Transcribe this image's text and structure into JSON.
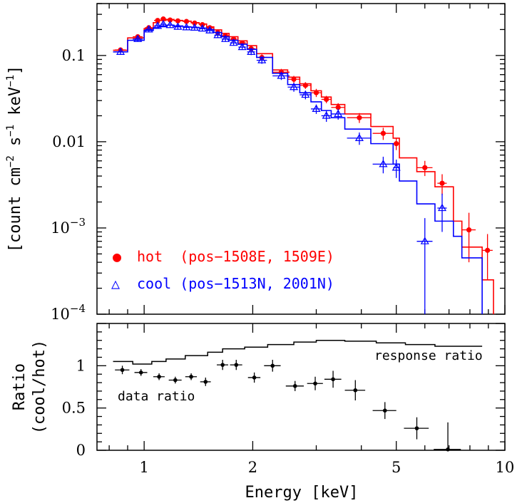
{
  "chart_data": [
    {
      "type": "scatter",
      "panel": "top",
      "xlabel": "Energy [keV]",
      "ylabel": [
        "[count cm",
        "−2",
        " s",
        "−1",
        " keV",
        "−1",
        "]"
      ],
      "xscale": "log",
      "yscale": "log",
      "xlim": [
        0.74,
        10
      ],
      "ylim": [
        0.0001,
        0.4
      ],
      "xtick_labels": [
        {
          "value": 1,
          "label": "1"
        },
        {
          "value": 2,
          "label": "2"
        },
        {
          "value": 5,
          "label": "5"
        },
        {
          "value": 10,
          "label": "10"
        }
      ],
      "ytick_labels": [
        {
          "value": 0.1,
          "label": "0.1",
          "exp": ""
        },
        {
          "value": 0.01,
          "label": "0.01",
          "exp": ""
        },
        {
          "value": 0.001,
          "label": "10",
          "exp": "−3"
        },
        {
          "value": 0.0001,
          "label": "10",
          "exp": "−4"
        }
      ],
      "legend": {
        "placement": "lower-left",
        "entries": [
          {
            "marker": "●",
            "text": "hot  (pos−1508E, 1509E)",
            "color": "#ff0000"
          },
          {
            "marker": "△",
            "text": "cool (pos−1513N, 2001N)",
            "color": "#0000ff"
          }
        ]
      },
      "series": [
        {
          "name": "hot",
          "color": "#ff0000",
          "marker": "filled-circle",
          "points": [
            {
              "x": 0.86,
              "y": 0.116,
              "xerr": 0.03,
              "yerr": 0.008
            },
            {
              "x": 0.96,
              "y": 0.165,
              "xerr": 0.03,
              "yerr": 0.01
            },
            {
              "x": 1.03,
              "y": 0.21,
              "xerr": 0.025,
              "yerr": 0.012
            },
            {
              "x": 1.09,
              "y": 0.255,
              "xerr": 0.025,
              "yerr": 0.014
            },
            {
              "x": 1.13,
              "y": 0.265,
              "xerr": 0.02,
              "yerr": 0.014
            },
            {
              "x": 1.18,
              "y": 0.258,
              "xerr": 0.025,
              "yerr": 0.014
            },
            {
              "x": 1.24,
              "y": 0.252,
              "xerr": 0.03,
              "yerr": 0.014
            },
            {
              "x": 1.31,
              "y": 0.248,
              "xerr": 0.03,
              "yerr": 0.013
            },
            {
              "x": 1.38,
              "y": 0.238,
              "xerr": 0.03,
              "yerr": 0.013
            },
            {
              "x": 1.45,
              "y": 0.228,
              "xerr": 0.03,
              "yerr": 0.012
            },
            {
              "x": 1.52,
              "y": 0.21,
              "xerr": 0.035,
              "yerr": 0.012
            },
            {
              "x": 1.6,
              "y": 0.185,
              "xerr": 0.035,
              "yerr": 0.011
            },
            {
              "x": 1.68,
              "y": 0.17,
              "xerr": 0.04,
              "yerr": 0.011
            },
            {
              "x": 1.77,
              "y": 0.155,
              "xerr": 0.04,
              "yerr": 0.01
            },
            {
              "x": 1.87,
              "y": 0.14,
              "xerr": 0.045,
              "yerr": 0.01
            },
            {
              "x": 1.98,
              "y": 0.12,
              "xerr": 0.05,
              "yerr": 0.009
            },
            {
              "x": 2.12,
              "y": 0.095,
              "xerr": 0.07,
              "yerr": 0.008
            },
            {
              "x": 2.4,
              "y": 0.064,
              "xerr": 0.13,
              "yerr": 0.006
            },
            {
              "x": 2.6,
              "y": 0.053,
              "xerr": 0.1,
              "yerr": 0.005
            },
            {
              "x": 2.8,
              "y": 0.045,
              "xerr": 0.1,
              "yerr": 0.004
            },
            {
              "x": 3.0,
              "y": 0.037,
              "xerr": 0.1,
              "yerr": 0.004
            },
            {
              "x": 3.2,
              "y": 0.031,
              "xerr": 0.1,
              "yerr": 0.003
            },
            {
              "x": 3.45,
              "y": 0.025,
              "xerr": 0.15,
              "yerr": 0.003
            },
            {
              "x": 3.95,
              "y": 0.019,
              "xerr": 0.3,
              "yerr": 0.0025
            },
            {
              "x": 4.6,
              "y": 0.0125,
              "xerr": 0.3,
              "yerr": 0.002
            },
            {
              "x": 5.0,
              "y": 0.0095,
              "xerr": 0.1,
              "yerr": 0.0015
            },
            {
              "x": 6.0,
              "y": 0.005,
              "xerr": 0.3,
              "yerr": 0.001
            },
            {
              "x": 6.7,
              "y": 0.0033,
              "xerr": 0.2,
              "yerr": 0.0009
            },
            {
              "x": 7.95,
              "y": 0.00095,
              "xerr": 0.35,
              "yerr": 0.00055
            },
            {
              "x": 8.95,
              "y": 0.00055,
              "xerr": 0.3,
              "yerr": 0.0003
            }
          ],
          "model_steps": [
            [
              0.82,
              0.115
            ],
            [
              0.9,
              0.16
            ],
            [
              1.0,
              0.205
            ],
            [
              1.06,
              0.24
            ],
            [
              1.1,
              0.255
            ],
            [
              1.15,
              0.262
            ],
            [
              1.21,
              0.255
            ],
            [
              1.28,
              0.25
            ],
            [
              1.35,
              0.24
            ],
            [
              1.42,
              0.232
            ],
            [
              1.49,
              0.215
            ],
            [
              1.56,
              0.198
            ],
            [
              1.64,
              0.18
            ],
            [
              1.72,
              0.165
            ],
            [
              1.82,
              0.148
            ],
            [
              1.93,
              0.13
            ],
            [
              2.05,
              0.105
            ],
            [
              2.27,
              0.068
            ],
            [
              2.5,
              0.056
            ],
            [
              2.7,
              0.047
            ],
            [
              2.9,
              0.039
            ],
            [
              3.1,
              0.033
            ],
            [
              3.3,
              0.027
            ],
            [
              3.6,
              0.021
            ],
            [
              4.25,
              0.015
            ],
            [
              4.9,
              0.011
            ],
            [
              5.1,
              0.0065
            ],
            [
              5.7,
              0.0045
            ],
            [
              6.4,
              0.003
            ],
            [
              7.2,
              0.0012
            ],
            [
              7.6,
              0.0006
            ],
            [
              8.65,
              0.00025
            ],
            [
              9.3,
              0.00025
            ]
          ]
        },
        {
          "name": "cool",
          "color": "#0000ff",
          "marker": "open-triangle",
          "points": [
            {
              "x": 0.86,
              "y": 0.11,
              "xerr": 0.03,
              "yerr": 0.008
            },
            {
              "x": 0.96,
              "y": 0.155,
              "xerr": 0.03,
              "yerr": 0.01
            },
            {
              "x": 1.03,
              "y": 0.2,
              "xerr": 0.025,
              "yerr": 0.012
            },
            {
              "x": 1.09,
              "y": 0.22,
              "xerr": 0.025,
              "yerr": 0.013
            },
            {
              "x": 1.13,
              "y": 0.23,
              "xerr": 0.02,
              "yerr": 0.013
            },
            {
              "x": 1.18,
              "y": 0.225,
              "xerr": 0.025,
              "yerr": 0.013
            },
            {
              "x": 1.24,
              "y": 0.215,
              "xerr": 0.03,
              "yerr": 0.013
            },
            {
              "x": 1.31,
              "y": 0.212,
              "xerr": 0.03,
              "yerr": 0.012
            },
            {
              "x": 1.38,
              "y": 0.21,
              "xerr": 0.03,
              "yerr": 0.012
            },
            {
              "x": 1.45,
              "y": 0.205,
              "xerr": 0.03,
              "yerr": 0.012
            },
            {
              "x": 1.52,
              "y": 0.195,
              "xerr": 0.035,
              "yerr": 0.011
            },
            {
              "x": 1.6,
              "y": 0.172,
              "xerr": 0.035,
              "yerr": 0.011
            },
            {
              "x": 1.68,
              "y": 0.155,
              "xerr": 0.04,
              "yerr": 0.01
            },
            {
              "x": 1.77,
              "y": 0.14,
              "xerr": 0.04,
              "yerr": 0.01
            },
            {
              "x": 1.87,
              "y": 0.125,
              "xerr": 0.045,
              "yerr": 0.009
            },
            {
              "x": 1.98,
              "y": 0.11,
              "xerr": 0.05,
              "yerr": 0.009
            },
            {
              "x": 2.12,
              "y": 0.088,
              "xerr": 0.07,
              "yerr": 0.008
            },
            {
              "x": 2.4,
              "y": 0.058,
              "xerr": 0.13,
              "yerr": 0.006
            },
            {
              "x": 2.6,
              "y": 0.043,
              "xerr": 0.1,
              "yerr": 0.005
            },
            {
              "x": 2.8,
              "y": 0.035,
              "xerr": 0.1,
              "yerr": 0.004
            },
            {
              "x": 3.0,
              "y": 0.024,
              "xerr": 0.1,
              "yerr": 0.003
            },
            {
              "x": 3.2,
              "y": 0.02,
              "xerr": 0.1,
              "yerr": 0.003
            },
            {
              "x": 3.45,
              "y": 0.021,
              "xerr": 0.15,
              "yerr": 0.003
            },
            {
              "x": 3.95,
              "y": 0.011,
              "xerr": 0.3,
              "yerr": 0.0018
            },
            {
              "x": 4.6,
              "y": 0.0055,
              "xerr": 0.3,
              "yerr": 0.0012
            },
            {
              "x": 5.0,
              "y": 0.005,
              "xerr": 0.1,
              "yerr": 0.0012
            },
            {
              "x": 6.0,
              "y": 0.0007,
              "xerr": 0.3,
              "yerr": 0.0006
            },
            {
              "x": 6.7,
              "y": 0.0017,
              "xerr": 0.2,
              "yerr": 0.0008
            }
          ],
          "model_steps": [
            [
              0.82,
              0.11
            ],
            [
              0.9,
              0.15
            ],
            [
              1.0,
              0.195
            ],
            [
              1.06,
              0.21
            ],
            [
              1.1,
              0.22
            ],
            [
              1.15,
              0.225
            ],
            [
              1.21,
              0.22
            ],
            [
              1.28,
              0.215
            ],
            [
              1.35,
              0.212
            ],
            [
              1.42,
              0.208
            ],
            [
              1.49,
              0.2
            ],
            [
              1.56,
              0.185
            ],
            [
              1.64,
              0.165
            ],
            [
              1.72,
              0.15
            ],
            [
              1.82,
              0.135
            ],
            [
              1.93,
              0.118
            ],
            [
              2.05,
              0.095
            ],
            [
              2.27,
              0.062
            ],
            [
              2.5,
              0.046
            ],
            [
              2.7,
              0.037
            ],
            [
              2.9,
              0.029
            ],
            [
              3.1,
              0.023
            ],
            [
              3.3,
              0.019
            ],
            [
              3.6,
              0.014
            ],
            [
              4.25,
              0.0095
            ],
            [
              4.9,
              0.0055
            ],
            [
              5.1,
              0.0035
            ],
            [
              5.7,
              0.0019
            ],
            [
              6.4,
              0.0012
            ],
            [
              7.2,
              0.0008
            ],
            [
              7.6,
              0.00045
            ],
            [
              8.65,
              0.00045
            ]
          ]
        }
      ]
    },
    {
      "type": "scatter",
      "panel": "bottom",
      "xlabel": "Energy [keV]",
      "ylabel": [
        "Ratio",
        "(cool/hot)"
      ],
      "xscale": "log",
      "xlim": [
        0.74,
        10
      ],
      "ylim": [
        0,
        1.5
      ],
      "ytick_labels": [
        {
          "value": 0,
          "label": "0"
        },
        {
          "value": 0.5,
          "label": "0.5"
        },
        {
          "value": 1,
          "label": "1"
        }
      ],
      "annotations": {
        "response": "response ratio",
        "data": "data ratio"
      },
      "series": [
        {
          "name": "data ratio",
          "color": "#000000",
          "points": [
            {
              "x": 0.87,
              "y": 0.95,
              "xerr": 0.04,
              "yerr": 0.05
            },
            {
              "x": 0.98,
              "y": 0.92,
              "xerr": 0.04,
              "yerr": 0.04
            },
            {
              "x": 1.1,
              "y": 0.87,
              "xerr": 0.04,
              "yerr": 0.04
            },
            {
              "x": 1.22,
              "y": 0.83,
              "xerr": 0.05,
              "yerr": 0.04
            },
            {
              "x": 1.35,
              "y": 0.87,
              "xerr": 0.05,
              "yerr": 0.04
            },
            {
              "x": 1.48,
              "y": 0.81,
              "xerr": 0.05,
              "yerr": 0.05
            },
            {
              "x": 1.65,
              "y": 1.01,
              "xerr": 0.06,
              "yerr": 0.06
            },
            {
              "x": 1.8,
              "y": 1.01,
              "xerr": 0.07,
              "yerr": 0.06
            },
            {
              "x": 2.02,
              "y": 0.86,
              "xerr": 0.08,
              "yerr": 0.06
            },
            {
              "x": 2.27,
              "y": 1.0,
              "xerr": 0.12,
              "yerr": 0.07
            },
            {
              "x": 2.62,
              "y": 0.76,
              "xerr": 0.15,
              "yerr": 0.06
            },
            {
              "x": 2.98,
              "y": 0.79,
              "xerr": 0.15,
              "yerr": 0.08
            },
            {
              "x": 3.34,
              "y": 0.84,
              "xerr": 0.18,
              "yerr": 0.1
            },
            {
              "x": 3.85,
              "y": 0.71,
              "xerr": 0.25,
              "yerr": 0.12
            },
            {
              "x": 4.65,
              "y": 0.47,
              "xerr": 0.35,
              "yerr": 0.1
            },
            {
              "x": 5.7,
              "y": 0.26,
              "xerr": 0.45,
              "yerr": 0.13
            },
            {
              "x": 6.95,
              "y": 0.01,
              "xerr": 0.6,
              "yerr": 0.32
            }
          ]
        },
        {
          "name": "response ratio",
          "color": "#000000",
          "steps": [
            [
              0.82,
              1.05
            ],
            [
              0.93,
              1.02
            ],
            [
              1.05,
              1.05
            ],
            [
              1.15,
              1.08
            ],
            [
              1.3,
              1.12
            ],
            [
              1.5,
              1.16
            ],
            [
              1.65,
              1.2
            ],
            [
              1.9,
              1.22
            ],
            [
              2.2,
              1.25
            ],
            [
              2.6,
              1.28
            ],
            [
              3.0,
              1.3
            ],
            [
              3.6,
              1.29
            ],
            [
              4.4,
              1.27
            ],
            [
              5.3,
              1.25
            ],
            [
              6.4,
              1.23
            ],
            [
              8.65,
              1.23
            ]
          ]
        }
      ]
    }
  ]
}
